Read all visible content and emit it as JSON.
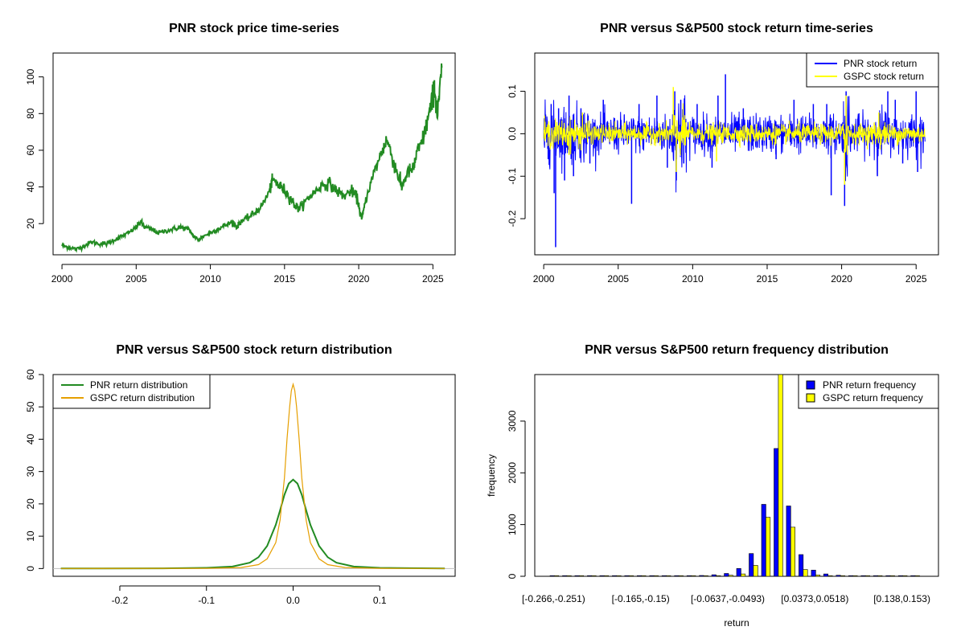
{
  "chart_data": [
    {
      "id": "price",
      "type": "line",
      "title": "PNR stock price time-series",
      "xlabel": "",
      "ylabel": "",
      "xlim": [
        1999.4,
        2026.5
      ],
      "ylim": [
        3,
        113
      ],
      "x_ticks": [
        2000,
        2005,
        2010,
        2015,
        2020,
        2025
      ],
      "y_ticks": [
        20,
        40,
        60,
        80,
        100
      ],
      "series": [
        {
          "color": "#228B22",
          "x": [
            2000.0,
            2000.5,
            2001.0,
            2001.5,
            2002.0,
            2002.5,
            2003.0,
            2003.5,
            2004.0,
            2004.5,
            2005.0,
            2005.3,
            2005.6,
            2006.0,
            2006.5,
            2007.0,
            2007.5,
            2008.0,
            2008.5,
            2008.9,
            2009.2,
            2009.5,
            2010.0,
            2010.5,
            2011.0,
            2011.5,
            2011.8,
            2012.0,
            2012.5,
            2013.0,
            2013.5,
            2014.0,
            2014.2,
            2014.6,
            2015.0,
            2015.4,
            2015.7,
            2016.0,
            2016.5,
            2017.0,
            2017.5,
            2018.0,
            2018.5,
            2019.0,
            2019.5,
            2019.9,
            2020.2,
            2020.5,
            2021.0,
            2021.5,
            2021.9,
            2022.3,
            2022.7,
            2022.9,
            2023.3,
            2023.7,
            2023.9,
            2024.3,
            2024.6,
            2024.9,
            2025.1,
            2025.3,
            2025.6
          ],
          "y": [
            8,
            7,
            6,
            8,
            10,
            9,
            9,
            11,
            13,
            15,
            18,
            21,
            18,
            17,
            15,
            16,
            17,
            18,
            17,
            13,
            11,
            13,
            15,
            17,
            19,
            21,
            18,
            21,
            23,
            26,
            30,
            38,
            44,
            41,
            38,
            34,
            30,
            28,
            33,
            37,
            41,
            42,
            38,
            35,
            38,
            34,
            22,
            34,
            47,
            58,
            66,
            55,
            45,
            40,
            48,
            50,
            58,
            65,
            75,
            85,
            95,
            78,
            105
          ]
        }
      ]
    },
    {
      "id": "returns",
      "type": "line",
      "title": "PNR versus S&P500 stock return time-series",
      "xlabel": "",
      "ylabel": "",
      "xlim": [
        1999.4,
        2026.5
      ],
      "ylim": [
        -0.285,
        0.19
      ],
      "x_ticks": [
        2000,
        2005,
        2010,
        2015,
        2020,
        2025
      ],
      "y_ticks": [
        -0.2,
        -0.1,
        0.0,
        0.1
      ],
      "y_tick_labels": [
        "-0.2",
        "-0.1",
        "0.0",
        "0.1"
      ],
      "legend": "top-right",
      "series": [
        {
          "name": "PNR stock return",
          "color": "#0000FF",
          "spikes": [
            [
              2000.3,
              -0.06
            ],
            [
              2000.5,
              0.07
            ],
            [
              2000.7,
              -0.14
            ],
            [
              2000.8,
              -0.267
            ],
            [
              2001.0,
              0.06
            ],
            [
              2001.4,
              -0.11
            ],
            [
              2001.7,
              0.09
            ],
            [
              2002.0,
              -0.1
            ],
            [
              2002.5,
              0.06
            ],
            [
              2003.1,
              -0.07
            ],
            [
              2004.0,
              0.08
            ],
            [
              2005.9,
              -0.165
            ],
            [
              2006.4,
              0.07
            ],
            [
              2007.6,
              0.09
            ],
            [
              2008.3,
              -0.08
            ],
            [
              2008.8,
              0.1
            ],
            [
              2008.9,
              -0.11
            ],
            [
              2009.2,
              0.08
            ],
            [
              2009.4,
              -0.07
            ],
            [
              2010.3,
              0.07
            ],
            [
              2011.3,
              -0.08
            ],
            [
              2011.7,
              0.09
            ],
            [
              2012.2,
              0.14
            ],
            [
              2013.4,
              0.06
            ],
            [
              2015.6,
              -0.06
            ],
            [
              2016.8,
              0.08
            ],
            [
              2018.1,
              0.07
            ],
            [
              2019.0,
              0.07
            ],
            [
              2019.3,
              -0.145
            ],
            [
              2020.2,
              -0.17
            ],
            [
              2020.3,
              0.1
            ],
            [
              2022.4,
              -0.1
            ],
            [
              2023.1,
              0.1
            ],
            [
              2023.6,
              0.08
            ],
            [
              2024.1,
              -0.07
            ],
            [
              2025.0,
              0.1
            ],
            [
              2025.1,
              -0.09
            ]
          ]
        },
        {
          "name": "GSPC stock return",
          "color": "#FFFF00",
          "spikes": [
            [
              2008.7,
              0.11
            ],
            [
              2008.9,
              -0.09
            ],
            [
              2020.2,
              -0.12
            ],
            [
              2020.3,
              0.09
            ],
            [
              2001.7,
              -0.05
            ],
            [
              2002.6,
              0.05
            ],
            [
              2011.6,
              -0.065
            ],
            [
              2022.5,
              0.05
            ]
          ]
        }
      ]
    },
    {
      "id": "density",
      "type": "line",
      "title": "PNR versus S&P500 stock return distribution",
      "xlabel": "",
      "ylabel": "",
      "xlim": [
        -0.277,
        0.187
      ],
      "ylim": [
        -2.4,
        60
      ],
      "x_ticks": [
        -0.2,
        -0.1,
        0.0,
        0.1
      ],
      "x_tick_labels": [
        "-0.2",
        "-0.1",
        "0.0",
        "0.1"
      ],
      "y_ticks": [
        0,
        10,
        20,
        30,
        40,
        50,
        60
      ],
      "legend": "top-left",
      "series": [
        {
          "name": "PNR return distribution",
          "color": "#228B22",
          "x": [
            -0.268,
            -0.15,
            -0.1,
            -0.07,
            -0.05,
            -0.04,
            -0.03,
            -0.02,
            -0.015,
            -0.01,
            -0.005,
            0.0,
            0.005,
            0.01,
            0.015,
            0.02,
            0.03,
            0.04,
            0.05,
            0.07,
            0.1,
            0.175
          ],
          "y": [
            0,
            0.05,
            0.2,
            0.6,
            1.8,
            3.5,
            7.0,
            13.5,
            18.0,
            22.8,
            26.3,
            27.5,
            26.3,
            22.8,
            18.0,
            13.5,
            7.0,
            3.5,
            1.8,
            0.6,
            0.2,
            0
          ]
        },
        {
          "name": "GSPC return distribution",
          "color": "#E69F00",
          "x": [
            -0.268,
            -0.1,
            -0.06,
            -0.04,
            -0.03,
            -0.02,
            -0.015,
            -0.01,
            -0.007,
            -0.004,
            -0.002,
            0.0,
            0.002,
            0.004,
            0.007,
            0.01,
            0.015,
            0.02,
            0.03,
            0.04,
            0.06,
            0.1,
            0.175
          ],
          "y": [
            0,
            0.05,
            0.3,
            1.2,
            3.0,
            8.0,
            15.0,
            28.0,
            40.0,
            50.0,
            55.0,
            57.0,
            55.0,
            50.0,
            40.0,
            28.0,
            15.0,
            8.0,
            3.0,
            1.2,
            0.3,
            0.05,
            0
          ]
        }
      ],
      "baseline_color": "#BEBEBE"
    },
    {
      "id": "freq",
      "type": "bar",
      "title": "PNR versus S&P500 return frequency distribution",
      "xlabel": "return",
      "ylabel": "frequency",
      "ylim": [
        0,
        3900
      ],
      "y_ticks": [
        0,
        1000,
        2000,
        3000
      ],
      "legend": "top-right",
      "categories": [
        "[-0.266,-0.251)",
        "[-0.251,-0.237)",
        "[-0.237,-0.223)",
        "[-0.223,-0.208)",
        "[-0.208,-0.194)",
        "[-0.194,-0.179)",
        "[-0.179,-0.165)",
        "[-0.165,-0.15)",
        "[-0.15,-0.136)",
        "[-0.136,-0.122)",
        "[-0.122,-0.107)",
        "[-0.107,-0.0926)",
        "[-0.0926,-0.0781)",
        "[-0.0781,-0.0637)",
        "[-0.0637,-0.0493)",
        "[-0.0493,-0.0348)",
        "[-0.0348,-0.0204)",
        "[-0.0204,-0.00597)",
        "[-0.00597,0.00847)",
        "[0.00847,0.0229)",
        "[0.0229,0.0373)",
        "[0.0373,0.0518)",
        "[0.0518,0.0662)",
        "[0.0662,0.0806)",
        "[0.0806,0.095)",
        "[0.095,0.109)",
        "[0.109,0.124)",
        "[0.124,0.138)",
        "[0.138,0.153)",
        "[0.153,0.167)"
      ],
      "visible_category_labels": [
        0,
        7,
        14,
        21,
        28
      ],
      "series": [
        {
          "name": "PNR return frequency",
          "color": "#0000FF",
          "values": [
            1,
            0,
            0,
            0,
            0,
            0,
            1,
            1,
            1,
            2,
            4,
            8,
            15,
            30,
            55,
            150,
            440,
            1390,
            2470,
            1360,
            420,
            120,
            45,
            20,
            10,
            5,
            2,
            1,
            1,
            0
          ]
        },
        {
          "name": "GSPC return frequency",
          "color": "#FFFF00",
          "values": [
            0,
            0,
            0,
            0,
            0,
            0,
            0,
            0,
            0,
            0,
            1,
            2,
            5,
            10,
            20,
            45,
            210,
            1140,
            3900,
            950,
            130,
            25,
            8,
            3,
            1,
            1,
            0,
            0,
            0,
            0
          ]
        }
      ]
    }
  ]
}
